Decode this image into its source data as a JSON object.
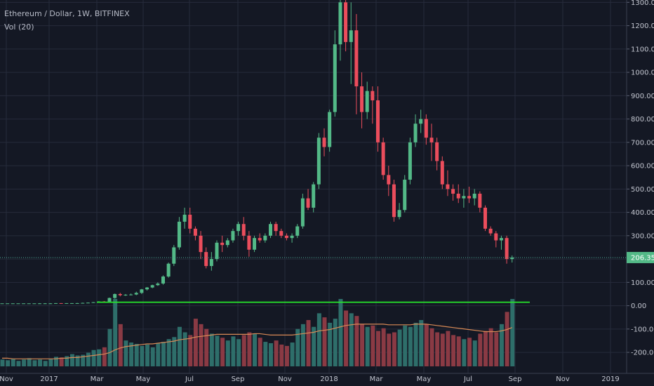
{
  "header": {
    "title": "Ethereum / Dollar, 1W, BITFINEX",
    "volume_label": "Vol (20)"
  },
  "colors": {
    "background": "#141824",
    "grid": "#262b3b",
    "up": "#53b987",
    "down": "#eb4d5c",
    "volume_up": "#2e6e6a",
    "volume_down": "#8a3a44",
    "volume_ma": "#d98a56",
    "support_line": "#27e52b",
    "last_price_line": "#4aa695"
  },
  "chart_data": {
    "type": "candlestick",
    "title": "Ethereum / Dollar, 1W, BITFINEX",
    "y_axis": {
      "ticks": [
        "1300.00",
        "1200.00",
        "1100.00",
        "1000.00",
        "900.00",
        "800.00",
        "700.00",
        "600.00",
        "500.00",
        "400.00",
        "300.00",
        "200.00",
        "100.00",
        "0.00",
        "-100.00",
        "-200.00"
      ],
      "range": [
        -290,
        1310
      ]
    },
    "x_axis": {
      "ticks": [
        "Nov",
        "2017",
        "Mar",
        "May",
        "Jul",
        "Sep",
        "Nov",
        "2018",
        "Mar",
        "May",
        "Jul",
        "Sep",
        "Nov",
        "2019"
      ]
    },
    "last_price": 206.35,
    "last_price_label": "206.35",
    "support_level": 15,
    "grid": true,
    "legend": "top-left",
    "candles": [
      [
        10,
        10,
        10,
        10
      ],
      [
        10,
        10,
        10,
        10
      ],
      [
        10,
        10,
        10,
        10
      ],
      [
        10,
        10,
        10,
        10
      ],
      [
        10,
        10,
        10,
        10
      ],
      [
        10,
        10,
        10,
        10
      ],
      [
        10,
        10,
        10,
        10
      ],
      [
        10,
        11,
        9,
        10
      ],
      [
        10,
        11,
        9,
        10
      ],
      [
        10,
        11,
        9,
        10
      ],
      [
        10,
        11,
        10,
        11
      ],
      [
        11,
        11,
        10,
        10
      ],
      [
        10,
        11,
        10,
        11
      ],
      [
        11,
        11,
        10,
        11
      ],
      [
        11,
        12,
        10,
        11
      ],
      [
        11,
        13,
        10,
        12
      ],
      [
        12,
        14,
        11,
        13
      ],
      [
        13,
        16,
        12,
        15
      ],
      [
        15,
        19,
        14,
        18
      ],
      [
        18,
        20,
        16,
        17
      ],
      [
        17,
        35,
        16,
        33
      ],
      [
        33,
        52,
        30,
        50
      ],
      [
        50,
        55,
        40,
        45
      ],
      [
        45,
        50,
        42,
        47
      ],
      [
        47,
        52,
        44,
        48
      ],
      [
        48,
        60,
        45,
        55
      ],
      [
        55,
        72,
        50,
        70
      ],
      [
        70,
        80,
        65,
        78
      ],
      [
        78,
        90,
        75,
        88
      ],
      [
        88,
        100,
        85,
        95
      ],
      [
        95,
        130,
        90,
        125
      ],
      [
        125,
        185,
        120,
        180
      ],
      [
        180,
        260,
        170,
        250
      ],
      [
        250,
        380,
        240,
        360
      ],
      [
        360,
        420,
        330,
        390
      ],
      [
        390,
        420,
        310,
        330
      ],
      [
        330,
        340,
        280,
        300
      ],
      [
        300,
        320,
        200,
        230
      ],
      [
        230,
        250,
        160,
        170
      ],
      [
        170,
        230,
        150,
        200
      ],
      [
        200,
        280,
        190,
        270
      ],
      [
        270,
        300,
        230,
        260
      ],
      [
        260,
        290,
        250,
        280
      ],
      [
        280,
        330,
        270,
        320
      ],
      [
        320,
        360,
        300,
        350
      ],
      [
        350,
        380,
        280,
        300
      ],
      [
        300,
        320,
        210,
        240
      ],
      [
        240,
        300,
        230,
        290
      ],
      [
        290,
        310,
        270,
        280
      ],
      [
        280,
        310,
        270,
        300
      ],
      [
        300,
        360,
        290,
        350
      ],
      [
        350,
        360,
        300,
        320
      ],
      [
        320,
        330,
        290,
        300
      ],
      [
        300,
        310,
        280,
        290
      ],
      [
        290,
        310,
        270,
        300
      ],
      [
        300,
        350,
        290,
        340
      ],
      [
        340,
        480,
        330,
        460
      ],
      [
        460,
        500,
        410,
        420
      ],
      [
        420,
        530,
        400,
        520
      ],
      [
        520,
        740,
        500,
        720
      ],
      [
        720,
        760,
        640,
        680
      ],
      [
        680,
        840,
        660,
        830
      ],
      [
        830,
        1180,
        810,
        1120
      ],
      [
        1120,
        1320,
        1050,
        1300
      ],
      [
        1300,
        1420,
        1090,
        1130
      ],
      [
        1130,
        1300,
        950,
        1180
      ],
      [
        1180,
        1250,
        820,
        940
      ],
      [
        940,
        1000,
        760,
        830
      ],
      [
        830,
        960,
        800,
        920
      ],
      [
        920,
        940,
        780,
        880
      ],
      [
        880,
        940,
        660,
        700
      ],
      [
        700,
        720,
        540,
        560
      ],
      [
        560,
        600,
        470,
        520
      ],
      [
        520,
        540,
        360,
        380
      ],
      [
        380,
        440,
        370,
        410
      ],
      [
        410,
        560,
        400,
        540
      ],
      [
        540,
        720,
        520,
        700
      ],
      [
        700,
        820,
        680,
        780
      ],
      [
        780,
        840,
        740,
        800
      ],
      [
        800,
        820,
        690,
        720
      ],
      [
        720,
        780,
        620,
        700
      ],
      [
        700,
        720,
        580,
        620
      ],
      [
        620,
        640,
        500,
        520
      ],
      [
        520,
        580,
        470,
        500
      ],
      [
        500,
        520,
        450,
        480
      ],
      [
        480,
        520,
        440,
        460
      ],
      [
        460,
        500,
        420,
        470
      ],
      [
        470,
        510,
        440,
        460
      ],
      [
        460,
        500,
        430,
        480
      ],
      [
        480,
        490,
        400,
        420
      ],
      [
        420,
        430,
        320,
        330
      ],
      [
        330,
        340,
        300,
        310
      ],
      [
        310,
        320,
        250,
        280
      ],
      [
        280,
        300,
        240,
        290
      ],
      [
        290,
        300,
        180,
        200
      ],
      [
        200,
        215,
        185,
        206.35
      ]
    ],
    "volumes": [
      0.1,
      0.09,
      0.11,
      0.08,
      0.1,
      0.12,
      0.09,
      0.1,
      0.08,
      0.11,
      0.14,
      0.13,
      0.15,
      0.18,
      0.16,
      0.17,
      0.2,
      0.24,
      0.25,
      0.28,
      0.55,
      0.99,
      0.62,
      0.38,
      0.35,
      0.33,
      0.3,
      0.32,
      0.28,
      0.34,
      0.36,
      0.4,
      0.43,
      0.58,
      0.5,
      0.46,
      0.7,
      0.62,
      0.55,
      0.48,
      0.45,
      0.42,
      0.38,
      0.44,
      0.4,
      0.46,
      0.5,
      0.48,
      0.42,
      0.36,
      0.34,
      0.38,
      0.32,
      0.3,
      0.35,
      0.55,
      0.62,
      0.68,
      0.58,
      0.78,
      0.72,
      0.64,
      0.7,
      0.99,
      0.82,
      0.78,
      0.74,
      0.62,
      0.58,
      0.6,
      0.52,
      0.56,
      0.48,
      0.5,
      0.54,
      0.6,
      0.58,
      0.64,
      0.68,
      0.62,
      0.56,
      0.5,
      0.48,
      0.52,
      0.46,
      0.44,
      0.4,
      0.42,
      0.38,
      0.48,
      0.52,
      0.56,
      0.5,
      0.62,
      0.8,
      0.99
    ],
    "volume_ma": [
      0.12,
      0.12,
      0.11,
      0.11,
      0.11,
      0.11,
      0.11,
      0.11,
      0.11,
      0.11,
      0.11,
      0.12,
      0.12,
      0.13,
      0.13,
      0.14,
      0.15,
      0.16,
      0.17,
      0.18,
      0.2,
      0.24,
      0.27,
      0.29,
      0.3,
      0.31,
      0.32,
      0.33,
      0.33,
      0.34,
      0.35,
      0.36,
      0.37,
      0.39,
      0.4,
      0.41,
      0.43,
      0.44,
      0.45,
      0.46,
      0.47,
      0.47,
      0.47,
      0.47,
      0.47,
      0.47,
      0.47,
      0.48,
      0.48,
      0.47,
      0.46,
      0.46,
      0.46,
      0.46,
      0.46,
      0.47,
      0.48,
      0.49,
      0.5,
      0.52,
      0.53,
      0.54,
      0.56,
      0.58,
      0.6,
      0.61,
      0.62,
      0.62,
      0.62,
      0.62,
      0.62,
      0.62,
      0.61,
      0.61,
      0.61,
      0.61,
      0.61,
      0.62,
      0.62,
      0.62,
      0.61,
      0.6,
      0.59,
      0.58,
      0.57,
      0.56,
      0.55,
      0.54,
      0.53,
      0.52,
      0.51,
      0.51,
      0.51,
      0.52,
      0.54,
      0.57
    ]
  }
}
